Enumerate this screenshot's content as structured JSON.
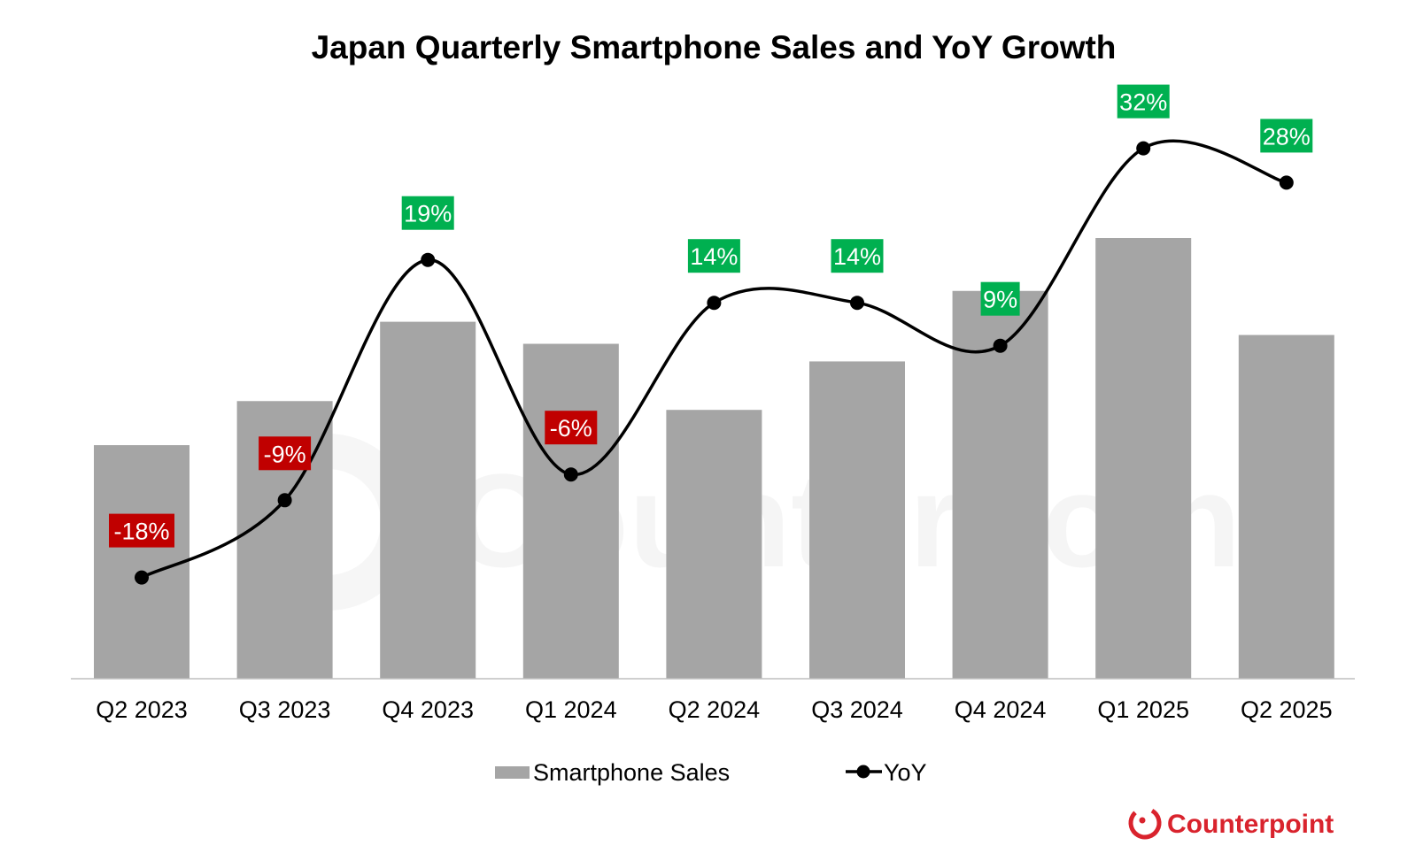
{
  "chart_data": {
    "type": "bar",
    "title": "Japan Quarterly Smartphone Sales and YoY Growth",
    "xlabel": "",
    "ylabel": "",
    "categories": [
      "Q2 2023",
      "Q3 2023",
      "Q4 2023",
      "Q1 2024",
      "Q2 2024",
      "Q3 2024",
      "Q4 2024",
      "Q1 2025",
      "Q2 2025"
    ],
    "series": [
      {
        "name": "Smartphone Sales",
        "type": "bar",
        "axis": "primary",
        "note": "No value axis shown; values are relative estimates (index, arbitrary units)",
        "values": [
          53,
          63,
          81,
          76,
          61,
          72,
          88,
          100,
          78
        ],
        "color": "#A5A5A5"
      },
      {
        "name": "YoY",
        "type": "line",
        "axis": "secondary",
        "smooth": true,
        "values": [
          -18,
          -9,
          19,
          -6,
          14,
          14,
          9,
          32,
          28
        ],
        "labels": [
          "-18%",
          "-9%",
          "19%",
          "-6%",
          "14%",
          "14%",
          "9%",
          "32%",
          "28%"
        ],
        "color": "#000000"
      }
    ],
    "ylim": [
      0,
      100
    ],
    "y2lim": [
      -30,
      50
    ],
    "grid": false,
    "legend": {
      "position": "bottom",
      "entries": [
        "Smartphone Sales",
        "YoY"
      ]
    },
    "colors": {
      "positive_label": "#00B050",
      "negative_label": "#C00000",
      "bar": "#A5A5A5",
      "axis": "#BFBFBF"
    }
  },
  "branding": {
    "logo_text": "Counterpoint",
    "watermark_text": "Counterpoint",
    "logo_color": "#D9232D"
  }
}
